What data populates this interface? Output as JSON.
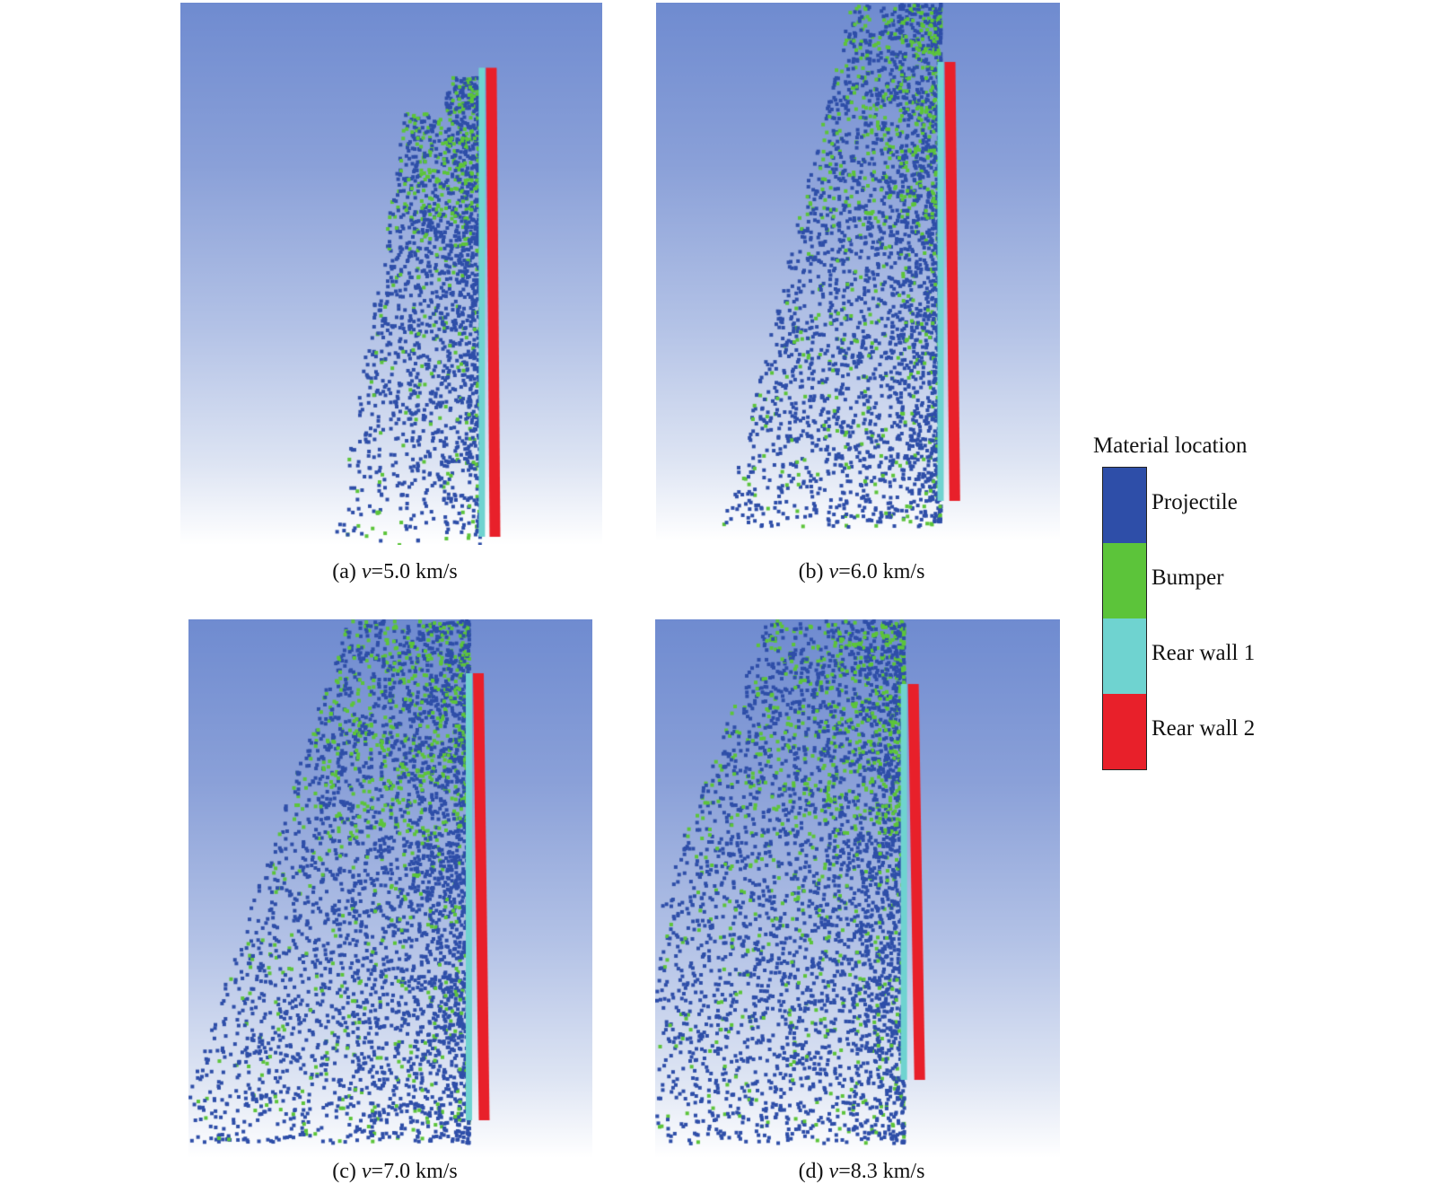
{
  "panels": [
    {
      "id": "a",
      "caption_prefix": "(a) ",
      "caption_var": "v",
      "caption_value": "=5.0 km/s",
      "spread": 0.35,
      "top_fill": 0.25
    },
    {
      "id": "b",
      "caption_prefix": "(b) ",
      "caption_var": "v",
      "caption_value": "=6.0 km/s",
      "spread": 0.55,
      "top_fill": 0.0
    },
    {
      "id": "c",
      "caption_prefix": "(c) ",
      "caption_var": "v",
      "caption_value": "=7.0 km/s",
      "spread": 0.75,
      "top_fill": 0.0
    },
    {
      "id": "d",
      "caption_prefix": "(d) ",
      "caption_var": "v",
      "caption_value": "=8.3 km/s",
      "spread": 0.85,
      "top_fill": 0.0
    }
  ],
  "legend": {
    "title": "Material location",
    "items": [
      {
        "label": "Projectile",
        "color": "#2e4ea8"
      },
      {
        "label": "Bumper",
        "color": "#5cc43a"
      },
      {
        "label": "Rear wall 1",
        "color": "#6fd3d0"
      },
      {
        "label": "Rear wall 2",
        "color": "#e8202a"
      }
    ]
  }
}
